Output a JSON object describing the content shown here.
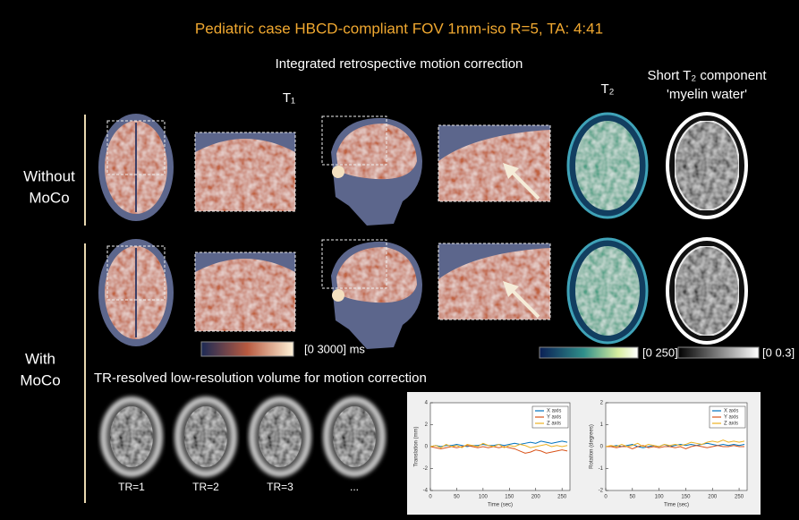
{
  "title": "Pediatric case HBCD-compliant FOV 1mm-iso R=5, TA: 4:41",
  "subtitle": "Integrated retrospective motion correction",
  "column_labels": {
    "t1": "T₁",
    "t2": "T₂",
    "short_t2": [
      "Short T₂ component",
      "'myelin water'"
    ]
  },
  "row_labels": [
    [
      "Without",
      "MoCo"
    ],
    [
      "With",
      "MoCo"
    ]
  ],
  "colorbars": [
    "[0 3000] ms",
    "[0 250] ms",
    "[0 0.3]"
  ],
  "lowres_caption": "TR-resolved low-resolution volume for motion correction",
  "tr_labels": [
    "TR=1",
    "TR=2",
    "TR=3",
    "..."
  ],
  "charts": [
    {
      "type": "line",
      "ylabel": "Translation (mm)",
      "xlabel": "Time (sec)",
      "grid": false,
      "x": [
        0,
        10,
        20,
        30,
        40,
        50,
        60,
        70,
        80,
        90,
        100,
        110,
        120,
        130,
        140,
        150,
        160,
        170,
        180,
        190,
        200,
        210,
        220,
        230,
        240,
        250,
        260
      ],
      "xlim": [
        0,
        265
      ],
      "xticks": [
        0,
        50,
        100,
        150,
        200,
        250
      ],
      "ylim": [
        -4,
        4
      ],
      "yticks": [
        -4,
        -2,
        0,
        2,
        4
      ],
      "series": [
        {
          "name": "X axis",
          "color": "#0072bd",
          "values": [
            0,
            0.1,
            0,
            0.1,
            0.1,
            0.2,
            0.1,
            0,
            0.1,
            0.1,
            0.2,
            0.1,
            0.1,
            0.2,
            0.1,
            0.2,
            0.3,
            0.2,
            0.3,
            0.4,
            0.3,
            0.5,
            0.4,
            0.3,
            0.4,
            0.5,
            0.4
          ]
        },
        {
          "name": "Y axis",
          "color": "#d95319",
          "values": [
            0,
            -0.1,
            -0.2,
            -0.1,
            0,
            -0.1,
            0,
            0.1,
            0,
            -0.1,
            0,
            -0.1,
            0,
            -0.1,
            0,
            -0.1,
            -0.2,
            -0.4,
            -0.6,
            -0.5,
            -0.3,
            -0.4,
            -0.6,
            -0.5,
            -0.4,
            -0.3,
            -0.4
          ]
        },
        {
          "name": "Z axis",
          "color": "#edb120",
          "values": [
            0,
            0.1,
            -0.1,
            0.2,
            0,
            0.1,
            -0.1,
            0.2,
            0.1,
            0,
            0.3,
            0.1,
            0,
            0.2,
            -0.1,
            0.1,
            0,
            0.2,
            0.1,
            -0.1,
            0,
            0.1,
            0.2,
            0,
            0.1,
            0,
            0.1
          ]
        }
      ]
    },
    {
      "type": "line",
      "ylabel": "Rotation (degrees)",
      "xlabel": "Time (sec)",
      "grid": false,
      "x": [
        0,
        10,
        20,
        30,
        40,
        50,
        60,
        70,
        80,
        90,
        100,
        110,
        120,
        130,
        140,
        150,
        160,
        170,
        180,
        190,
        200,
        210,
        220,
        230,
        240,
        250,
        260
      ],
      "xlim": [
        0,
        265
      ],
      "xticks": [
        0,
        50,
        100,
        150,
        200,
        250
      ],
      "ylim": [
        -2,
        2
      ],
      "yticks": [
        -2,
        -1,
        0,
        1,
        2
      ],
      "series": [
        {
          "name": "X axis",
          "color": "#0072bd",
          "values": [
            0,
            0,
            0.05,
            0,
            0.05,
            0.1,
            0,
            -0.05,
            0,
            0.05,
            0,
            0.1,
            0,
            0.05,
            0.1,
            0.05,
            0.1,
            0.05,
            0.1,
            0.15,
            0.1,
            0.05,
            0.1,
            0.05,
            0.1,
            0.05,
            0.1
          ]
        },
        {
          "name": "Y axis",
          "color": "#d95319",
          "values": [
            0,
            0,
            -0.05,
            0,
            0,
            -0.1,
            0,
            0.05,
            -0.05,
            0,
            -0.05,
            0,
            0,
            -0.05,
            0,
            -0.1,
            0,
            0.05,
            0,
            -0.05,
            0,
            0.05,
            0,
            0,
            0.05,
            0,
            0
          ]
        },
        {
          "name": "Z axis",
          "color": "#edb120",
          "values": [
            0,
            0.05,
            0,
            0.1,
            0,
            0.05,
            0.15,
            0,
            0.1,
            0.05,
            0,
            0.1,
            0.05,
            0.1,
            0.05,
            0.1,
            0.2,
            0.15,
            0.1,
            0.2,
            0.25,
            0.2,
            0.3,
            0.2,
            0.25,
            0.2,
            0.25
          ]
        }
      ]
    }
  ]
}
